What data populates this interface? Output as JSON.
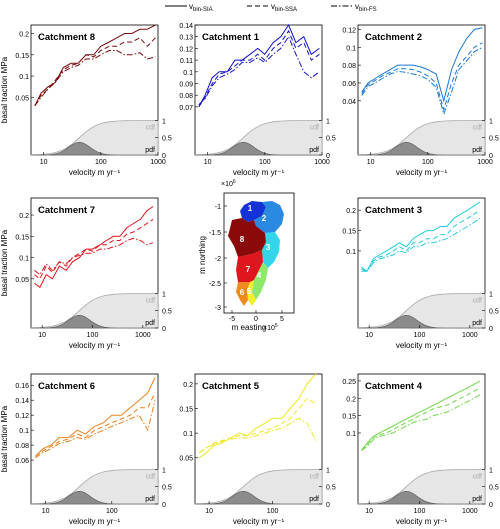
{
  "legend": {
    "items": [
      {
        "main": "v",
        "sub": "bin-SIA",
        "dash": "solid"
      },
      {
        "main": "v",
        "sub": "bin-SSA",
        "dash": "dashed"
      },
      {
        "main": "v",
        "sub": "bin-FS",
        "dash": "dashdot"
      }
    ]
  },
  "map": {
    "exponent_y": "×10",
    "exponent_y_power": "6",
    "exponent_x": "×10",
    "exponent_x_power": "5",
    "ylabel": "m northing",
    "xlabel": "m easting",
    "yticks": [
      -1,
      -1.5,
      -2,
      -2.5,
      -3
    ],
    "xticks": [
      -5,
      0,
      5
    ],
    "labels": [
      "1",
      "2",
      "3",
      "4",
      "5",
      "6",
      "7",
      "8"
    ],
    "colors": {
      "c1": "#1433d6",
      "c2": "#2a89e0",
      "c3": "#33d6e8",
      "c4": "#8ee86a",
      "c5": "#f2ee2a",
      "c6": "#f08a1e",
      "c7": "#e0161e",
      "c8": "#8a0a0a"
    }
  },
  "chart_data": [
    {
      "type": "line",
      "title": "Catchment 8",
      "color": "#7a0a0a",
      "xlabel": "velocity m yr⁻¹",
      "ylabel": "basal traction MPa",
      "xscale": "log",
      "xlim": [
        6,
        1000
      ],
      "ylim": [
        0,
        0.22
      ],
      "xticks": [
        10,
        100,
        1000
      ],
      "yticks": [
        0.05,
        0.1,
        0.15,
        0.2
      ],
      "x": [
        7,
        9,
        12,
        16,
        22,
        30,
        40,
        55,
        75,
        100,
        140,
        190,
        260,
        350,
        480,
        650,
        900
      ],
      "series": [
        {
          "name": "vbin-SIA",
          "values": [
            0.03,
            0.06,
            0.075,
            0.085,
            0.12,
            0.13,
            0.13,
            0.15,
            0.15,
            0.17,
            0.18,
            0.19,
            0.2,
            0.2,
            0.21,
            0.21,
            0.22
          ]
        },
        {
          "name": "vbin-SSA",
          "values": [
            0.03,
            0.055,
            0.07,
            0.09,
            0.115,
            0.125,
            0.13,
            0.15,
            0.145,
            0.16,
            0.17,
            0.17,
            0.18,
            0.18,
            0.19,
            0.17,
            0.19
          ]
        },
        {
          "name": "vbin-FS",
          "values": [
            0.03,
            0.05,
            0.07,
            0.085,
            0.11,
            0.12,
            0.125,
            0.14,
            0.14,
            0.15,
            0.16,
            0.16,
            0.15,
            0.15,
            0.155,
            0.14,
            0.145
          ]
        }
      ],
      "cdf_label": "cdf",
      "pdf_label": "pdf",
      "right_ticks": [
        "1",
        "0.5",
        "0"
      ]
    },
    {
      "type": "line",
      "title": "Catchment 1",
      "color": "#1010c8",
      "xlabel": "velocity m yr⁻¹",
      "ylabel": "",
      "xscale": "log",
      "xlim": [
        6,
        1000
      ],
      "ylim": [
        0.06,
        0.14
      ],
      "xticks": [
        10,
        100,
        1000
      ],
      "yticks": [
        0.07,
        0.08,
        0.09,
        0.1,
        0.11,
        0.12,
        0.13,
        0.14
      ],
      "x": [
        7,
        9,
        12,
        16,
        22,
        30,
        40,
        55,
        75,
        100,
        140,
        190,
        260,
        350,
        480,
        650,
        900
      ],
      "series": [
        {
          "name": "vbin-SIA",
          "values": [
            0.07,
            0.08,
            0.095,
            0.1,
            0.1,
            0.11,
            0.11,
            0.115,
            0.12,
            0.115,
            0.125,
            0.13,
            0.14,
            0.125,
            0.13,
            0.115,
            0.12
          ]
        },
        {
          "name": "vbin-SSA",
          "values": [
            0.07,
            0.078,
            0.09,
            0.098,
            0.1,
            0.105,
            0.11,
            0.11,
            0.115,
            0.11,
            0.12,
            0.125,
            0.135,
            0.12,
            0.125,
            0.11,
            0.115
          ]
        },
        {
          "name": "vbin-FS",
          "values": [
            0.072,
            0.077,
            0.088,
            0.095,
            0.098,
            0.102,
            0.108,
            0.108,
            0.112,
            0.108,
            0.115,
            0.12,
            0.13,
            0.115,
            0.1,
            0.095,
            0.1
          ]
        }
      ],
      "cdf_label": "cdf",
      "pdf_label": "pdf",
      "right_ticks": [
        "1",
        "0.5",
        "0"
      ]
    },
    {
      "type": "line",
      "title": "Catchment 2",
      "color": "#1a78d6",
      "xlabel": "velocity m yr⁻¹",
      "ylabel": "",
      "xscale": "log",
      "xlim": [
        6,
        1000
      ],
      "ylim": [
        0.02,
        0.125
      ],
      "xticks": [
        10,
        100,
        1000
      ],
      "yticks": [
        0.04,
        0.06,
        0.08,
        0.1,
        0.12
      ],
      "x": [
        7,
        9,
        12,
        16,
        22,
        30,
        40,
        55,
        75,
        100,
        140,
        190,
        260,
        350,
        480,
        650,
        900
      ],
      "series": [
        {
          "name": "vbin-SIA",
          "values": [
            0.05,
            0.06,
            0.065,
            0.07,
            0.075,
            0.08,
            0.08,
            0.08,
            0.078,
            0.075,
            0.07,
            0.04,
            0.075,
            0.095,
            0.11,
            0.12,
            0.122
          ]
        },
        {
          "name": "vbin-SSA",
          "values": [
            0.048,
            0.058,
            0.063,
            0.068,
            0.072,
            0.076,
            0.076,
            0.075,
            0.072,
            0.068,
            0.06,
            0.03,
            0.06,
            0.08,
            0.09,
            0.1,
            0.105
          ]
        },
        {
          "name": "vbin-FS",
          "values": [
            0.046,
            0.056,
            0.06,
            0.065,
            0.07,
            0.073,
            0.072,
            0.07,
            0.068,
            0.064,
            0.055,
            0.025,
            0.05,
            0.075,
            0.085,
            0.095,
            0.1
          ]
        }
      ],
      "cdf_label": "cdf",
      "pdf_label": "pdf",
      "right_ticks": [
        "1",
        "0.5",
        "0"
      ]
    },
    {
      "type": "line",
      "title": "Catchment 7",
      "color": "#e0161e",
      "xlabel": "velocity m yr⁻¹",
      "ylabel": "basal traction MPa",
      "xscale": "log",
      "xlim": [
        6,
        2000
      ],
      "ylim": [
        0.02,
        0.24
      ],
      "xticks": [
        10,
        100,
        1000
      ],
      "yticks": [
        0.05,
        0.1,
        0.15,
        0.2
      ],
      "x": [
        7,
        9,
        12,
        16,
        22,
        30,
        40,
        55,
        75,
        100,
        140,
        190,
        260,
        350,
        480,
        650,
        900,
        1200,
        1600
      ],
      "series": [
        {
          "name": "vbin-SIA",
          "values": [
            0.04,
            0.03,
            0.06,
            0.05,
            0.08,
            0.07,
            0.09,
            0.1,
            0.12,
            0.12,
            0.13,
            0.14,
            0.15,
            0.15,
            0.17,
            0.18,
            0.19,
            0.21,
            0.22
          ]
        },
        {
          "name": "vbin-SSA",
          "values": [
            0.06,
            0.05,
            0.08,
            0.065,
            0.09,
            0.08,
            0.1,
            0.11,
            0.12,
            0.115,
            0.13,
            0.13,
            0.14,
            0.14,
            0.155,
            0.16,
            0.17,
            0.18,
            0.19
          ]
        },
        {
          "name": "vbin-FS",
          "values": [
            0.07,
            0.06,
            0.085,
            0.07,
            0.09,
            0.085,
            0.1,
            0.105,
            0.11,
            0.11,
            0.12,
            0.12,
            0.125,
            0.13,
            0.14,
            0.145,
            0.14,
            0.13,
            0.135
          ]
        }
      ],
      "cdf_label": "cdf",
      "pdf_label": "pdf",
      "right_ticks": [
        "1",
        "0.5",
        "0"
      ]
    },
    {
      "type": "line",
      "title": "Catchment 3",
      "color": "#22ccdd",
      "xlabel": "velocity m yr⁻¹",
      "ylabel": "",
      "xscale": "log",
      "xlim": [
        6,
        2000
      ],
      "ylim": [
        0,
        0.23
      ],
      "xticks": [
        10,
        100,
        1000
      ],
      "yticks": [
        0.1,
        0.15,
        0.2
      ],
      "x": [
        7,
        9,
        12,
        16,
        22,
        30,
        40,
        55,
        75,
        100,
        140,
        190,
        260,
        350,
        480,
        650,
        900,
        1200,
        1600
      ],
      "series": [
        {
          "name": "vbin-SIA",
          "values": [
            0.06,
            0.05,
            0.08,
            0.09,
            0.1,
            0.11,
            0.12,
            0.11,
            0.13,
            0.14,
            0.15,
            0.15,
            0.16,
            0.16,
            0.18,
            0.19,
            0.2,
            0.21,
            0.22
          ]
        },
        {
          "name": "vbin-SSA",
          "values": [
            0.055,
            0.05,
            0.075,
            0.085,
            0.09,
            0.1,
            0.11,
            0.1,
            0.12,
            0.12,
            0.13,
            0.13,
            0.14,
            0.14,
            0.16,
            0.17,
            0.18,
            0.19,
            0.2
          ]
        },
        {
          "name": "vbin-FS",
          "values": [
            0.05,
            0.05,
            0.07,
            0.08,
            0.085,
            0.09,
            0.1,
            0.095,
            0.11,
            0.11,
            0.12,
            0.12,
            0.125,
            0.13,
            0.14,
            0.15,
            0.16,
            0.17,
            0.18
          ]
        }
      ],
      "cdf_label": "cdf",
      "pdf_label": "pdf",
      "right_ticks": [
        "1",
        "0.5",
        "0"
      ]
    },
    {
      "type": "line",
      "title": "Catchment 6",
      "color": "#e8801a",
      "xlabel": "velocity m yr⁻¹",
      "ylabel": "basal traction MPa",
      "xscale": "log",
      "xlim": [
        6,
        500
      ],
      "ylim": [
        0.05,
        0.175
      ],
      "xticks": [
        10,
        100
      ],
      "yticks": [
        0.06,
        0.08,
        0.1,
        0.12,
        0.14,
        0.16
      ],
      "x": [
        7,
        9,
        12,
        16,
        22,
        30,
        40,
        55,
        75,
        100,
        140,
        190,
        260,
        350,
        450
      ],
      "series": [
        {
          "name": "vbin-SIA",
          "values": [
            0.065,
            0.075,
            0.08,
            0.09,
            0.09,
            0.1,
            0.095,
            0.105,
            0.11,
            0.12,
            0.12,
            0.13,
            0.14,
            0.15,
            0.17
          ]
        },
        {
          "name": "vbin-SSA",
          "values": [
            0.065,
            0.072,
            0.078,
            0.085,
            0.088,
            0.095,
            0.09,
            0.1,
            0.105,
            0.11,
            0.115,
            0.12,
            0.13,
            0.13,
            0.15
          ]
        },
        {
          "name": "vbin-FS",
          "values": [
            0.063,
            0.07,
            0.075,
            0.082,
            0.085,
            0.09,
            0.088,
            0.095,
            0.1,
            0.105,
            0.11,
            0.115,
            0.12,
            0.1,
            0.14
          ]
        }
      ],
      "cdf_label": "cdf",
      "pdf_label": "pdf",
      "right_ticks": [
        "1",
        "0.5",
        "0"
      ]
    },
    {
      "type": "line",
      "title": "Catchment 5",
      "color": "#eee820",
      "xlabel": "velocity m yr⁻¹",
      "ylabel": "",
      "xscale": "log",
      "xlim": [
        6,
        600
      ],
      "ylim": [
        0.03,
        0.22
      ],
      "xticks": [
        10,
        100
      ],
      "yticks": [
        0.05,
        0.1,
        0.15,
        0.2
      ],
      "x": [
        7,
        9,
        12,
        16,
        22,
        30,
        40,
        55,
        75,
        100,
        140,
        190,
        260,
        350,
        480
      ],
      "series": [
        {
          "name": "vbin-SIA",
          "values": [
            0.05,
            0.06,
            0.075,
            0.08,
            0.09,
            0.1,
            0.095,
            0.11,
            0.12,
            0.13,
            0.13,
            0.15,
            0.17,
            0.2,
            0.22
          ]
        },
        {
          "name": "vbin-SSA",
          "values": [
            0.06,
            0.07,
            0.08,
            0.085,
            0.09,
            0.095,
            0.095,
            0.1,
            0.105,
            0.11,
            0.12,
            0.13,
            0.15,
            0.17,
            0.16
          ]
        },
        {
          "name": "vbin-FS",
          "values": [
            0.06,
            0.07,
            0.078,
            0.083,
            0.088,
            0.09,
            0.09,
            0.095,
            0.1,
            0.105,
            0.11,
            0.12,
            0.13,
            0.12,
            0.085
          ]
        }
      ],
      "cdf_label": "cdf",
      "pdf_label": "pdf",
      "right_ticks": [
        "1",
        "0.5",
        "0"
      ]
    },
    {
      "type": "line",
      "title": "Catchment 4",
      "color": "#70d84a",
      "xlabel": "velocity m yr⁻¹",
      "ylabel": "",
      "xscale": "log",
      "xlim": [
        6,
        2000
      ],
      "ylim": [
        0,
        0.27
      ],
      "xticks": [
        10,
        100,
        1000
      ],
      "yticks": [
        0.1,
        0.15,
        0.2,
        0.25
      ],
      "x": [
        7,
        9,
        12,
        16,
        22,
        30,
        40,
        55,
        75,
        100,
        140,
        190,
        260,
        350,
        480,
        650,
        900,
        1200,
        1600
      ],
      "series": [
        {
          "name": "vbin-SIA",
          "values": [
            0.05,
            0.07,
            0.09,
            0.1,
            0.11,
            0.12,
            0.13,
            0.14,
            0.15,
            0.16,
            0.17,
            0.18,
            0.19,
            0.2,
            0.21,
            0.22,
            0.23,
            0.24,
            0.25
          ]
        },
        {
          "name": "vbin-SSA",
          "values": [
            0.05,
            0.065,
            0.085,
            0.095,
            0.1,
            0.11,
            0.12,
            0.13,
            0.14,
            0.15,
            0.16,
            0.17,
            0.175,
            0.18,
            0.19,
            0.2,
            0.21,
            0.22,
            0.23
          ]
        },
        {
          "name": "vbin-FS",
          "values": [
            0.05,
            0.06,
            0.08,
            0.09,
            0.095,
            0.1,
            0.11,
            0.12,
            0.13,
            0.135,
            0.14,
            0.15,
            0.155,
            0.16,
            0.17,
            0.18,
            0.19,
            0.2,
            0.21
          ]
        }
      ],
      "cdf_label": "cdf",
      "pdf_label": "pdf",
      "right_ticks": [
        "1",
        "0.5",
        "0"
      ]
    }
  ]
}
